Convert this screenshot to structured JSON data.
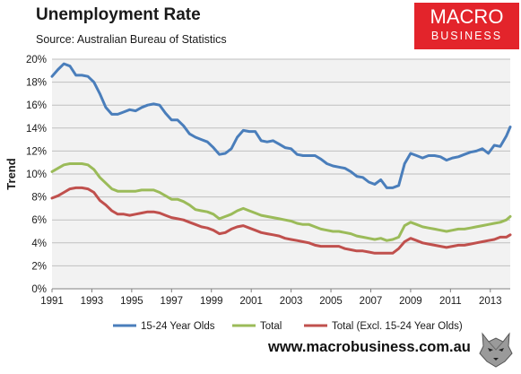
{
  "header": {
    "title": "Unemployment Rate",
    "source": "Source: Australian Bureau of Statistics"
  },
  "logo": {
    "line1": "MACRO",
    "line2": "BUSINESS",
    "color": "#e3242b"
  },
  "footer": {
    "url": "www.macrobusiness.com.au"
  },
  "chart_data": {
    "type": "line",
    "ylabel": "Trend",
    "ylim": [
      0,
      20
    ],
    "yticks": [
      "0%",
      "2%",
      "4%",
      "6%",
      "8%",
      "10%",
      "12%",
      "14%",
      "16%",
      "18%",
      "20%"
    ],
    "xlim": [
      1991,
      2014
    ],
    "xticks": [
      "1991",
      "1993",
      "1995",
      "1997",
      "1999",
      "2001",
      "2003",
      "2005",
      "2007",
      "2009",
      "2011",
      "2013"
    ],
    "grid": true,
    "legend": "bottom",
    "series": [
      {
        "name": "15-24 Year Olds",
        "color": "#4a7ebb",
        "x": [
          1991.0,
          1991.3,
          1991.6,
          1991.9,
          1992.2,
          1992.5,
          1992.8,
          1993.1,
          1993.4,
          1993.7,
          1994.0,
          1994.3,
          1994.6,
          1994.9,
          1995.2,
          1995.5,
          1995.8,
          1996.1,
          1996.4,
          1996.7,
          1997.0,
          1997.3,
          1997.6,
          1997.9,
          1998.2,
          1998.5,
          1998.8,
          1999.1,
          1999.4,
          1999.7,
          2000.0,
          2000.3,
          2000.6,
          2000.9,
          2001.2,
          2001.5,
          2001.8,
          2002.1,
          2002.4,
          2002.7,
          2003.0,
          2003.3,
          2003.6,
          2003.9,
          2004.2,
          2004.5,
          2004.8,
          2005.1,
          2005.4,
          2005.7,
          2006.0,
          2006.3,
          2006.6,
          2006.9,
          2007.2,
          2007.5,
          2007.8,
          2008.1,
          2008.4,
          2008.7,
          2009.0,
          2009.3,
          2009.6,
          2009.9,
          2010.2,
          2010.5,
          2010.8,
          2011.1,
          2011.4,
          2011.7,
          2012.0,
          2012.3,
          2012.6,
          2012.9,
          2013.2,
          2013.5,
          2013.8,
          2014.0
        ],
        "values": [
          18.5,
          19.1,
          19.6,
          19.4,
          18.6,
          18.6,
          18.5,
          18.0,
          17.0,
          15.8,
          15.2,
          15.2,
          15.4,
          15.6,
          15.5,
          15.8,
          16.0,
          16.1,
          16.0,
          15.3,
          14.7,
          14.7,
          14.2,
          13.5,
          13.2,
          13.0,
          12.8,
          12.3,
          11.7,
          11.8,
          12.2,
          13.2,
          13.8,
          13.7,
          13.7,
          12.9,
          12.8,
          12.9,
          12.6,
          12.3,
          12.2,
          11.7,
          11.6,
          11.6,
          11.6,
          11.3,
          10.9,
          10.7,
          10.6,
          10.5,
          10.2,
          9.8,
          9.7,
          9.3,
          9.1,
          9.5,
          8.8,
          8.8,
          9.0,
          10.9,
          11.8,
          11.6,
          11.4,
          11.6,
          11.6,
          11.5,
          11.2,
          11.4,
          11.5,
          11.7,
          11.9,
          12.0,
          12.2,
          11.8,
          12.5,
          12.4,
          13.3,
          14.1
        ]
      },
      {
        "name": "Total",
        "color": "#9bbb59",
        "x": [
          1991.0,
          1991.3,
          1991.6,
          1991.9,
          1992.2,
          1992.5,
          1992.8,
          1993.1,
          1993.4,
          1993.7,
          1994.0,
          1994.3,
          1994.6,
          1994.9,
          1995.2,
          1995.5,
          1995.8,
          1996.1,
          1996.4,
          1996.7,
          1997.0,
          1997.3,
          1997.6,
          1997.9,
          1998.2,
          1998.5,
          1998.8,
          1999.1,
          1999.4,
          1999.7,
          2000.0,
          2000.3,
          2000.6,
          2000.9,
          2001.2,
          2001.5,
          2001.8,
          2002.1,
          2002.4,
          2002.7,
          2003.0,
          2003.3,
          2003.6,
          2003.9,
          2004.2,
          2004.5,
          2004.8,
          2005.1,
          2005.4,
          2005.7,
          2006.0,
          2006.3,
          2006.6,
          2006.9,
          2007.2,
          2007.5,
          2007.8,
          2008.1,
          2008.4,
          2008.7,
          2009.0,
          2009.3,
          2009.6,
          2009.9,
          2010.2,
          2010.5,
          2010.8,
          2011.1,
          2011.4,
          2011.7,
          2012.0,
          2012.3,
          2012.6,
          2012.9,
          2013.2,
          2013.5,
          2013.8,
          2014.0
        ],
        "values": [
          10.2,
          10.5,
          10.8,
          10.9,
          10.9,
          10.9,
          10.8,
          10.4,
          9.7,
          9.2,
          8.7,
          8.5,
          8.5,
          8.5,
          8.5,
          8.6,
          8.6,
          8.6,
          8.4,
          8.1,
          7.8,
          7.8,
          7.6,
          7.3,
          6.9,
          6.8,
          6.7,
          6.5,
          6.1,
          6.3,
          6.5,
          6.8,
          7.0,
          6.8,
          6.6,
          6.4,
          6.3,
          6.2,
          6.1,
          6.0,
          5.9,
          5.7,
          5.6,
          5.6,
          5.4,
          5.2,
          5.1,
          5.0,
          5.0,
          4.9,
          4.8,
          4.6,
          4.5,
          4.4,
          4.3,
          4.4,
          4.2,
          4.3,
          4.5,
          5.5,
          5.8,
          5.6,
          5.4,
          5.3,
          5.2,
          5.1,
          5.0,
          5.1,
          5.2,
          5.2,
          5.3,
          5.4,
          5.5,
          5.6,
          5.7,
          5.8,
          6.0,
          6.3
        ]
      },
      {
        "name": "Total (Excl. 15-24 Year Olds)",
        "color": "#c0504d",
        "x": [
          1991.0,
          1991.3,
          1991.6,
          1991.9,
          1992.2,
          1992.5,
          1992.8,
          1993.1,
          1993.4,
          1993.7,
          1994.0,
          1994.3,
          1994.6,
          1994.9,
          1995.2,
          1995.5,
          1995.8,
          1996.1,
          1996.4,
          1996.7,
          1997.0,
          1997.3,
          1997.6,
          1997.9,
          1998.2,
          1998.5,
          1998.8,
          1999.1,
          1999.4,
          1999.7,
          2000.0,
          2000.3,
          2000.6,
          2000.9,
          2001.2,
          2001.5,
          2001.8,
          2002.1,
          2002.4,
          2002.7,
          2003.0,
          2003.3,
          2003.6,
          2003.9,
          2004.2,
          2004.5,
          2004.8,
          2005.1,
          2005.4,
          2005.7,
          2006.0,
          2006.3,
          2006.6,
          2006.9,
          2007.2,
          2007.5,
          2007.8,
          2008.1,
          2008.4,
          2008.7,
          2009.0,
          2009.3,
          2009.6,
          2009.9,
          2010.2,
          2010.5,
          2010.8,
          2011.1,
          2011.4,
          2011.7,
          2012.0,
          2012.3,
          2012.6,
          2012.9,
          2013.2,
          2013.5,
          2013.8,
          2014.0
        ],
        "values": [
          7.9,
          8.1,
          8.4,
          8.7,
          8.8,
          8.8,
          8.7,
          8.4,
          7.7,
          7.3,
          6.8,
          6.5,
          6.5,
          6.4,
          6.5,
          6.6,
          6.7,
          6.7,
          6.6,
          6.4,
          6.2,
          6.1,
          6.0,
          5.8,
          5.6,
          5.4,
          5.3,
          5.1,
          4.8,
          4.9,
          5.2,
          5.4,
          5.5,
          5.3,
          5.1,
          4.9,
          4.8,
          4.7,
          4.6,
          4.4,
          4.3,
          4.2,
          4.1,
          4.0,
          3.8,
          3.7,
          3.7,
          3.7,
          3.7,
          3.5,
          3.4,
          3.3,
          3.3,
          3.2,
          3.1,
          3.1,
          3.1,
          3.1,
          3.5,
          4.1,
          4.4,
          4.2,
          4.0,
          3.9,
          3.8,
          3.7,
          3.6,
          3.7,
          3.8,
          3.8,
          3.9,
          4.0,
          4.1,
          4.2,
          4.3,
          4.5,
          4.5,
          4.7
        ]
      }
    ]
  }
}
